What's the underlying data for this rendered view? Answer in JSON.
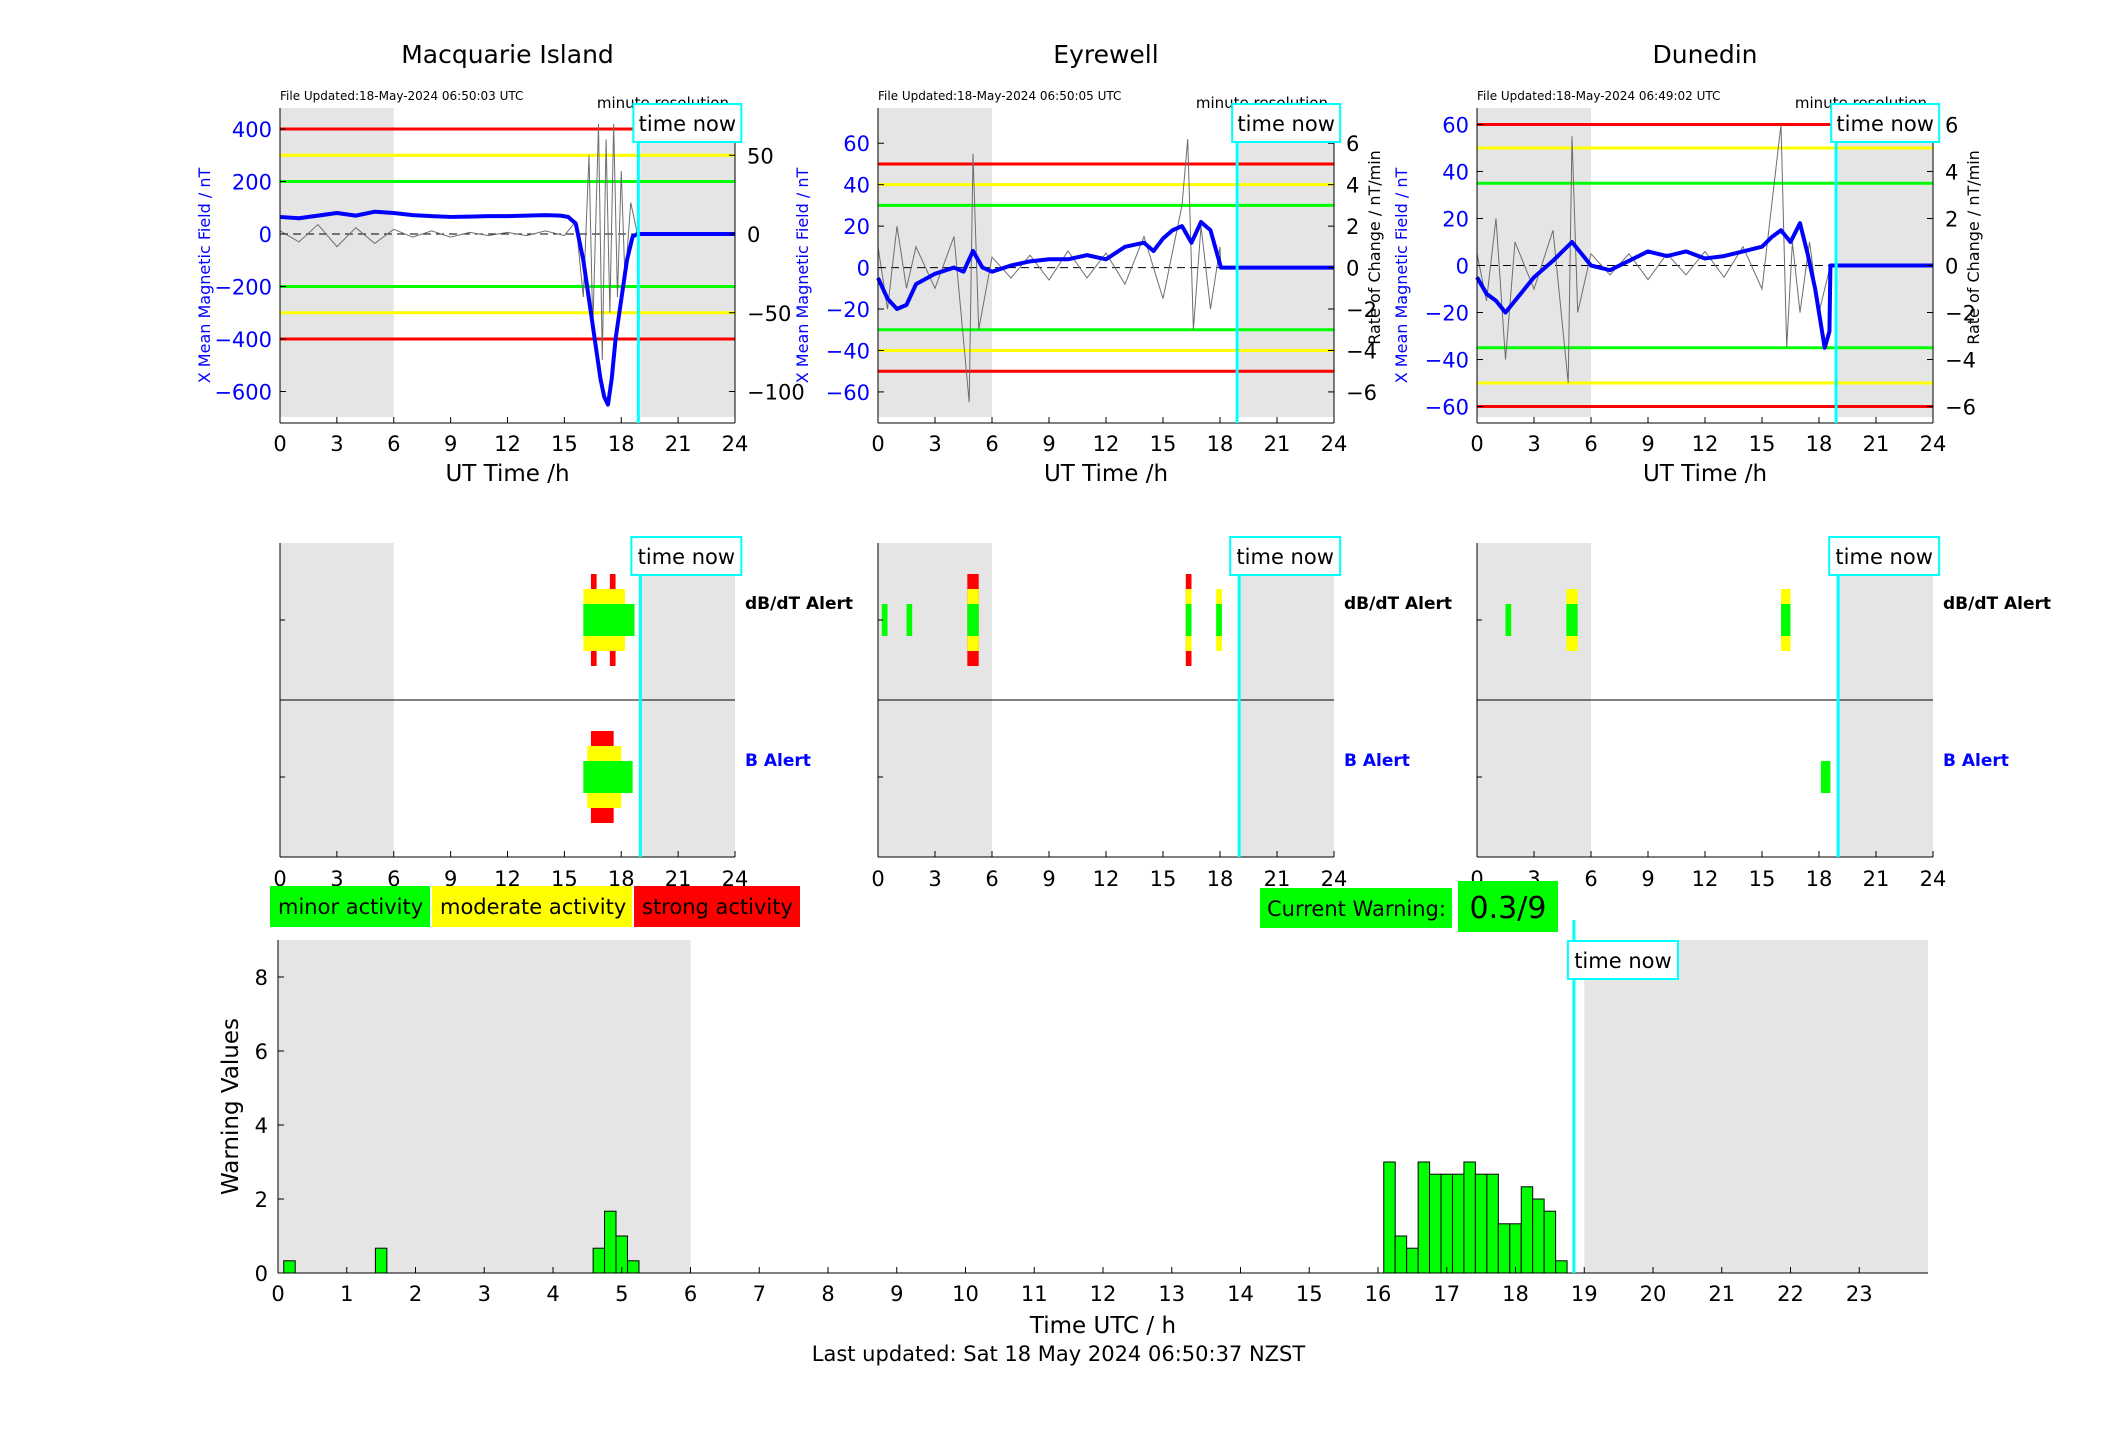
{
  "colors": {
    "red": "#ff0000",
    "yellow": "#ffff00",
    "green": "#00ff00",
    "blue": "#0000ff",
    "cyan": "#00ffff",
    "grey": "#e5e5e5",
    "black": "#000000"
  },
  "stations": [
    {
      "name": "Macquarie Island",
      "file_updated": "File Updated:18-May-2024 06:50:03 UTC",
      "resolution": "minute resolution",
      "left_label": "X Mean Magnetic Field / nT",
      "right_label": "",
      "left_ticks": [
        400,
        200,
        0,
        -200,
        -400,
        -600
      ],
      "left_range": [
        -720,
        480
      ],
      "right_ticks": [
        50,
        0,
        -50,
        -100
      ],
      "right_range": [
        -120,
        80
      ],
      "thresholds": {
        "red": [
          400,
          -400
        ],
        "yellow": [
          300,
          -300
        ],
        "green": [
          200,
          -200
        ]
      },
      "dbdt_alert": [
        {
          "from": 16.4,
          "to": 16.7,
          "level": "red"
        },
        {
          "from": 17.4,
          "to": 17.7,
          "level": "red"
        },
        {
          "from": 16.0,
          "to": 18.2,
          "level": "yellow"
        },
        {
          "from": 16.0,
          "to": 18.7,
          "level": "green"
        }
      ],
      "b_alert": [
        {
          "from": 16.4,
          "to": 17.6,
          "level": "red"
        },
        {
          "from": 16.2,
          "to": 18.0,
          "level": "yellow"
        },
        {
          "from": 16.0,
          "to": 18.6,
          "level": "green"
        }
      ],
      "mean_field": [
        [
          0,
          65
        ],
        [
          1,
          60
        ],
        [
          2,
          70
        ],
        [
          3,
          80
        ],
        [
          4,
          70
        ],
        [
          5,
          85
        ],
        [
          6,
          80
        ],
        [
          7,
          72
        ],
        [
          8,
          68
        ],
        [
          9,
          65
        ],
        [
          10,
          66
        ],
        [
          11,
          68
        ],
        [
          12,
          68
        ],
        [
          13,
          70
        ],
        [
          14,
          72
        ],
        [
          14.8,
          70
        ],
        [
          15.2,
          65
        ],
        [
          15.6,
          40
        ],
        [
          16,
          -100
        ],
        [
          16.3,
          -250
        ],
        [
          16.6,
          -400
        ],
        [
          16.9,
          -550
        ],
        [
          17.1,
          -620
        ],
        [
          17.3,
          -650
        ],
        [
          17.5,
          -550
        ],
        [
          17.7,
          -400
        ],
        [
          17.9,
          -300
        ],
        [
          18.1,
          -200
        ],
        [
          18.3,
          -100
        ],
        [
          18.6,
          -10
        ],
        [
          18.85,
          0
        ],
        [
          24,
          0
        ]
      ],
      "rate_of_change": [
        [
          0,
          2
        ],
        [
          1,
          -5
        ],
        [
          2,
          6
        ],
        [
          3,
          -8
        ],
        [
          4,
          4
        ],
        [
          5,
          -6
        ],
        [
          6,
          3
        ],
        [
          7,
          -2
        ],
        [
          8,
          2
        ],
        [
          9,
          -2
        ],
        [
          10,
          1
        ],
        [
          11,
          -1
        ],
        [
          12,
          1
        ],
        [
          13,
          -1
        ],
        [
          14,
          2
        ],
        [
          15,
          -1
        ],
        [
          15.6,
          8
        ],
        [
          16,
          -40
        ],
        [
          16.3,
          50
        ],
        [
          16.5,
          -60
        ],
        [
          16.8,
          70
        ],
        [
          17,
          -80
        ],
        [
          17.2,
          60
        ],
        [
          17.4,
          -50
        ],
        [
          17.6,
          70
        ],
        [
          17.8,
          -40
        ],
        [
          18,
          40
        ],
        [
          18.2,
          -30
        ],
        [
          18.5,
          20
        ],
        [
          18.85,
          0
        ]
      ]
    },
    {
      "name": "Eyrewell",
      "file_updated": "File Updated:18-May-2024 06:50:05 UTC",
      "resolution": "minute resolution",
      "left_label": "X Mean Magnetic Field / nT",
      "right_label": "Rate of Change / nT/min",
      "left_ticks": [
        60,
        40,
        20,
        0,
        -20,
        -40,
        -60
      ],
      "left_range": [
        -75,
        77
      ],
      "right_ticks": [
        6,
        4,
        2,
        0,
        -2,
        -4,
        -6
      ],
      "right_range": [
        -7.5,
        7.7
      ],
      "thresholds": {
        "red": [
          50,
          -50
        ],
        "yellow": [
          40,
          -40
        ],
        "green": [
          30,
          -30
        ]
      },
      "dbdt_alert": [
        {
          "from": 4.7,
          "to": 5.3,
          "level": "red"
        },
        {
          "from": 4.7,
          "to": 5.3,
          "level": "yellow"
        },
        {
          "from": 4.7,
          "to": 5.3,
          "level": "green"
        },
        {
          "from": 16.2,
          "to": 16.5,
          "level": "red"
        },
        {
          "from": 16.2,
          "to": 16.5,
          "level": "yellow"
        },
        {
          "from": 17.8,
          "to": 18.1,
          "level": "yellow"
        },
        {
          "from": 0.2,
          "to": 0.5,
          "level": "green"
        },
        {
          "from": 1.5,
          "to": 1.8,
          "level": "green"
        },
        {
          "from": 16.2,
          "to": 16.5,
          "level": "green"
        },
        {
          "from": 17.8,
          "to": 18.1,
          "level": "green"
        }
      ],
      "b_alert": [],
      "mean_field": [
        [
          0,
          -5
        ],
        [
          0.5,
          -15
        ],
        [
          1,
          -20
        ],
        [
          1.5,
          -18
        ],
        [
          2,
          -8
        ],
        [
          3,
          -3
        ],
        [
          4,
          0
        ],
        [
          4.5,
          -2
        ],
        [
          5,
          8
        ],
        [
          5.5,
          0
        ],
        [
          6,
          -2
        ],
        [
          7,
          1
        ],
        [
          8,
          3
        ],
        [
          9,
          4
        ],
        [
          10,
          4
        ],
        [
          11,
          6
        ],
        [
          12,
          4
        ],
        [
          13,
          10
        ],
        [
          14,
          12
        ],
        [
          14.5,
          8
        ],
        [
          15,
          14
        ],
        [
          15.5,
          18
        ],
        [
          16,
          20
        ],
        [
          16.5,
          12
        ],
        [
          17,
          22
        ],
        [
          17.5,
          18
        ],
        [
          18.05,
          0
        ],
        [
          24,
          0
        ]
      ],
      "rate_of_change": [
        [
          0,
          1
        ],
        [
          0.5,
          -2
        ],
        [
          1,
          2
        ],
        [
          1.5,
          -1
        ],
        [
          2,
          1
        ],
        [
          3,
          -1
        ],
        [
          4,
          1.5
        ],
        [
          4.8,
          -6.5
        ],
        [
          5,
          5.5
        ],
        [
          5.3,
          -3
        ],
        [
          6,
          0.5
        ],
        [
          7,
          -0.5
        ],
        [
          8,
          0.6
        ],
        [
          9,
          -0.6
        ],
        [
          10,
          0.8
        ],
        [
          11,
          -0.5
        ],
        [
          12,
          0.7
        ],
        [
          13,
          -0.8
        ],
        [
          14,
          1.5
        ],
        [
          15,
          -1.5
        ],
        [
          16,
          3
        ],
        [
          16.3,
          6.2
        ],
        [
          16.6,
          -3
        ],
        [
          17,
          2
        ],
        [
          17.5,
          -2
        ],
        [
          18,
          1
        ],
        [
          18.05,
          0
        ]
      ]
    },
    {
      "name": "Dunedin",
      "file_updated": "File Updated:18-May-2024 06:49:02 UTC",
      "resolution": "minute resolution",
      "left_label": "X Mean Magnetic Field / nT",
      "right_label": "Rate of Change / nT/min",
      "left_ticks": [
        60,
        40,
        20,
        0,
        -20,
        -40,
        -60
      ],
      "left_range": [
        -67,
        67
      ],
      "right_ticks": [
        6,
        4,
        2,
        0,
        -2,
        -4,
        -6
      ],
      "right_range": [
        -6.7,
        6.7
      ],
      "thresholds": {
        "red": [
          60,
          -60
        ],
        "yellow": [
          50,
          -50
        ],
        "green": [
          35,
          -35
        ]
      },
      "dbdt_alert": [
        {
          "from": 4.7,
          "to": 5.3,
          "level": "yellow"
        },
        {
          "from": 16.0,
          "to": 16.5,
          "level": "yellow"
        },
        {
          "from": 1.5,
          "to": 1.8,
          "level": "green"
        },
        {
          "from": 4.7,
          "to": 5.3,
          "level": "green"
        },
        {
          "from": 16.0,
          "to": 16.5,
          "level": "green"
        }
      ],
      "b_alert": [
        {
          "from": 18.1,
          "to": 18.6,
          "level": "green"
        }
      ],
      "mean_field": [
        [
          0,
          -5
        ],
        [
          0.5,
          -12
        ],
        [
          1,
          -15
        ],
        [
          1.5,
          -20
        ],
        [
          2,
          -15
        ],
        [
          3,
          -5
        ],
        [
          4,
          2
        ],
        [
          5,
          10
        ],
        [
          5.5,
          5
        ],
        [
          6,
          0
        ],
        [
          7,
          -2
        ],
        [
          8,
          2
        ],
        [
          9,
          6
        ],
        [
          10,
          4
        ],
        [
          11,
          6
        ],
        [
          12,
          3
        ],
        [
          13,
          4
        ],
        [
          14,
          6
        ],
        [
          15,
          8
        ],
        [
          15.5,
          12
        ],
        [
          16,
          15
        ],
        [
          16.5,
          10
        ],
        [
          17,
          18
        ],
        [
          17.4,
          5
        ],
        [
          17.8,
          -10
        ],
        [
          18.1,
          -25
        ],
        [
          18.3,
          -35
        ],
        [
          18.55,
          -28
        ],
        [
          18.6,
          0
        ],
        [
          24,
          0
        ]
      ],
      "rate_of_change": [
        [
          0,
          0.5
        ],
        [
          0.5,
          -1.5
        ],
        [
          1,
          2
        ],
        [
          1.5,
          -4
        ],
        [
          2,
          1
        ],
        [
          3,
          -1
        ],
        [
          4,
          1.5
        ],
        [
          4.8,
          -5
        ],
        [
          5,
          5.5
        ],
        [
          5.3,
          -2
        ],
        [
          6,
          0.5
        ],
        [
          7,
          -0.4
        ],
        [
          8,
          0.5
        ],
        [
          9,
          -0.6
        ],
        [
          10,
          0.5
        ],
        [
          11,
          -0.4
        ],
        [
          12,
          0.6
        ],
        [
          13,
          -0.5
        ],
        [
          14,
          0.8
        ],
        [
          15,
          -1
        ],
        [
          16,
          6
        ],
        [
          16.3,
          -3.5
        ],
        [
          16.6,
          1
        ],
        [
          17,
          -2
        ],
        [
          17.5,
          1
        ],
        [
          18,
          -2
        ],
        [
          18.6,
          0
        ]
      ]
    }
  ],
  "common": {
    "x_ticks": [
      0,
      3,
      6,
      9,
      12,
      15,
      18,
      21,
      24
    ],
    "x_label": "UT Time /h",
    "time_now_label": "time now",
    "time_now": 18.85,
    "shade_ranges": [
      [
        0,
        6
      ],
      [
        19,
        24
      ]
    ],
    "dbdt_alert_label": "dB/dT Alert",
    "b_alert_label": "B Alert"
  },
  "legend": {
    "minor": "minor activity",
    "moderate": "moderate activity",
    "strong": "strong activity"
  },
  "current_warning": {
    "label": "Current Warning:",
    "value": "0.3/9"
  },
  "chart_data": [
    {
      "type": "bar",
      "title": "",
      "xlabel": "Time UTC / h",
      "ylabel": "Warning Values",
      "xlim": [
        0,
        24
      ],
      "ylim": [
        0,
        9
      ],
      "x_ticks": [
        0,
        1,
        2,
        3,
        4,
        5,
        6,
        7,
        8,
        9,
        10,
        11,
        12,
        13,
        14,
        15,
        16,
        17,
        18,
        19,
        20,
        21,
        22,
        23
      ],
      "y_ticks": [
        0,
        2,
        4,
        6,
        8
      ],
      "bar_width_h": 0.1667,
      "time_now": 18.85,
      "time_now_label": "time now",
      "shade_ranges": [
        [
          0,
          6
        ],
        [
          19,
          24
        ]
      ],
      "bars": [
        {
          "x": 0.167,
          "value": 0.33
        },
        {
          "x": 1.5,
          "value": 0.67
        },
        {
          "x": 4.667,
          "value": 0.67
        },
        {
          "x": 4.833,
          "value": 1.67
        },
        {
          "x": 5.0,
          "value": 1.0
        },
        {
          "x": 5.167,
          "value": 0.33
        },
        {
          "x": 16.167,
          "value": 3.0
        },
        {
          "x": 16.333,
          "value": 1.0
        },
        {
          "x": 16.5,
          "value": 0.67
        },
        {
          "x": 16.667,
          "value": 3.0
        },
        {
          "x": 16.833,
          "value": 2.67
        },
        {
          "x": 17.0,
          "value": 2.67
        },
        {
          "x": 17.167,
          "value": 2.67
        },
        {
          "x": 17.333,
          "value": 3.0
        },
        {
          "x": 17.5,
          "value": 2.67
        },
        {
          "x": 17.667,
          "value": 2.67
        },
        {
          "x": 17.833,
          "value": 1.33
        },
        {
          "x": 18.0,
          "value": 1.33
        },
        {
          "x": 18.167,
          "value": 2.33
        },
        {
          "x": 18.333,
          "value": 2.0
        },
        {
          "x": 18.5,
          "value": 1.67
        },
        {
          "x": 18.667,
          "value": 0.33
        }
      ]
    }
  ],
  "footer": {
    "last_updated": "Last updated: Sat 18 May 2024 06:50:37 NZST"
  }
}
